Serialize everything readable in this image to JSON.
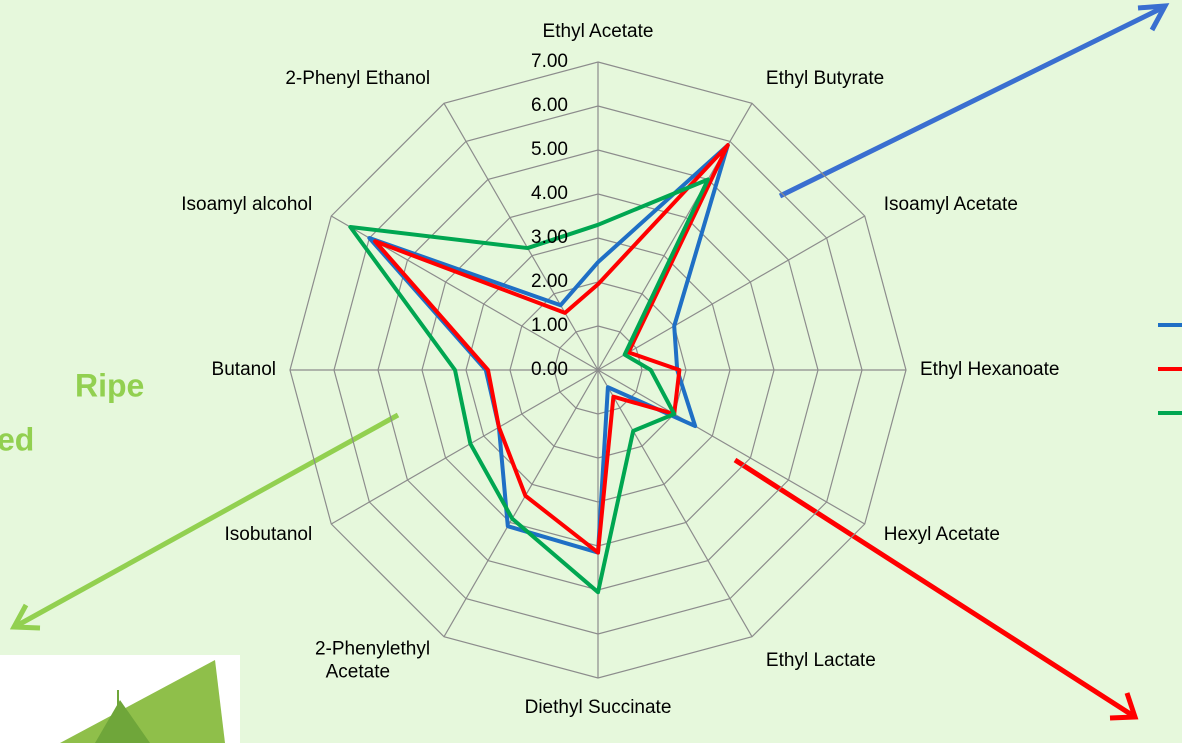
{
  "chart_data": {
    "type": "radar",
    "categories": [
      "Ethyl Acetate",
      "Ethyl Butyrate",
      "Isoamyl Acetate",
      "Ethyl Hexanoate",
      "Hexyl Acetate",
      "Ethyl Lactate",
      "Diethyl Succinate",
      "2-Phenylethyl Acetate",
      "Isobutanol",
      "Butanol",
      "Isoamyl alcohol",
      "2-Phenyl Ethanol"
    ],
    "series": [
      {
        "color": "#1f6fc5",
        "values": [
          2.45,
          5.9,
          2.0,
          1.8,
          2.55,
          0.45,
          4.15,
          4.1,
          2.6,
          2.55,
          6.0,
          1.7
        ]
      },
      {
        "color": "#ff0000",
        "values": [
          1.95,
          5.9,
          0.8,
          1.85,
          2.0,
          0.7,
          4.15,
          3.3,
          2.6,
          2.5,
          5.85,
          1.5
        ]
      },
      {
        "color": "#00a651",
        "values": [
          3.3,
          5.0,
          0.7,
          1.2,
          2.0,
          1.6,
          5.05,
          3.9,
          3.35,
          3.25,
          6.5,
          3.2
        ]
      }
    ],
    "ylim": [
      0,
      7
    ],
    "yticks": [
      {
        "value": 0,
        "label": "0.00"
      },
      {
        "value": 1,
        "label": "1.00"
      },
      {
        "value": 2,
        "label": "2.00"
      },
      {
        "value": 3,
        "label": "3.00"
      },
      {
        "value": 4,
        "label": "4.00"
      },
      {
        "value": 5,
        "label": "5.00"
      },
      {
        "value": 6,
        "label": "6.00"
      },
      {
        "value": 7,
        "label": "7.00"
      }
    ],
    "grid": true,
    "annotations": [
      "Ripe",
      "ed"
    ]
  }
}
